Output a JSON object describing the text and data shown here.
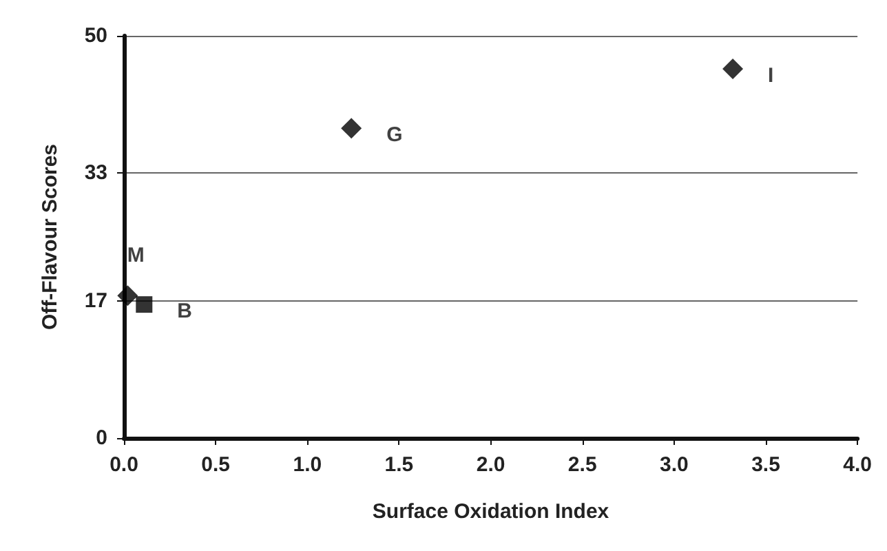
{
  "chart_data": {
    "type": "scatter",
    "xlabel": "Surface Oxidation Index",
    "ylabel": "Off-Flavour Scores",
    "xlim": [
      0,
      4
    ],
    "xticks": [
      {
        "value": 0,
        "label": "0.0"
      },
      {
        "value": 0.5,
        "label": "0.5"
      },
      {
        "value": 1,
        "label": "1.0"
      },
      {
        "value": 1.5,
        "label": "1.5"
      },
      {
        "value": 2,
        "label": "2.0"
      },
      {
        "value": 2.5,
        "label": "2.5"
      },
      {
        "value": 3,
        "label": "3.0"
      },
      {
        "value": 3.5,
        "label": "3.5"
      },
      {
        "value": 4,
        "label": "4.0"
      }
    ],
    "ylim": [
      0,
      50
    ],
    "yticks": [
      0,
      17,
      33,
      50
    ],
    "grid": "y",
    "series": [
      {
        "marker": "diamond",
        "color": "#000000",
        "x": [
          0.02,
          1.24,
          3.32
        ],
        "values": [
          17.7,
          38.5,
          45.9
        ],
        "value_labels": [
          "M",
          "G",
          "I"
        ]
      },
      {
        "marker": "square",
        "color": "#000000",
        "x": [
          0.11
        ],
        "values": [
          16.6
        ],
        "value_labels": [
          "B"
        ]
      }
    ]
  }
}
